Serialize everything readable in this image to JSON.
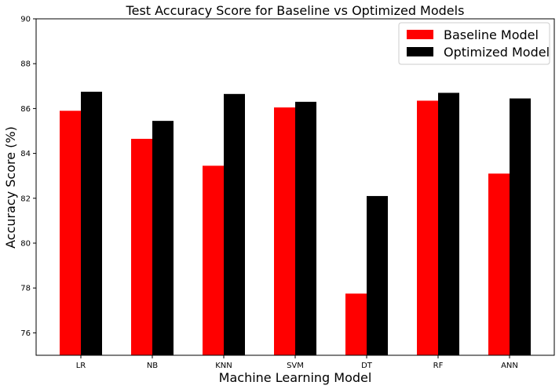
{
  "chart_data": {
    "type": "bar",
    "title": "Test Accuracy Score for Baseline vs Optimized Models",
    "xlabel": "Machine Learning Model",
    "ylabel": "Accuracy Score (%)",
    "categories": [
      "LR",
      "NB",
      "KNN",
      "SVM",
      "DT",
      "RF",
      "ANN"
    ],
    "series": [
      {
        "name": "Baseline Model",
        "color": "#ff0000",
        "values": [
          85.9,
          84.65,
          83.45,
          86.05,
          77.75,
          86.35,
          83.1
        ]
      },
      {
        "name": "Optimized Model",
        "color": "#000000",
        "values": [
          86.75,
          85.45,
          86.65,
          86.3,
          82.1,
          86.7,
          86.45
        ]
      }
    ],
    "ylim": [
      75,
      90
    ],
    "yticks": [
      76,
      78,
      80,
      82,
      84,
      86,
      88,
      90
    ],
    "grid": false,
    "legend_position": "top-right"
  }
}
